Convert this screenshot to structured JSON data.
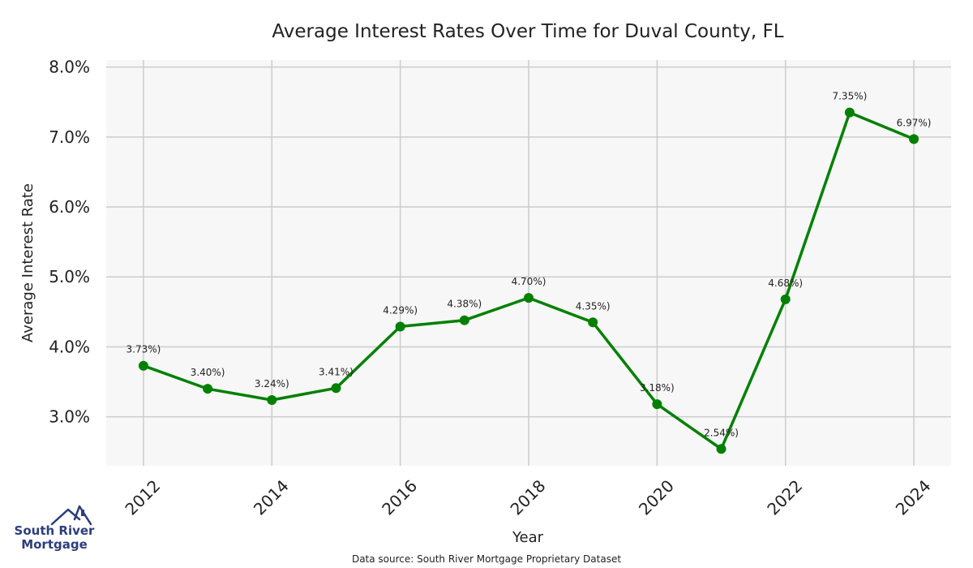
{
  "chart_data": {
    "type": "line",
    "title": "Average Interest Rates Over Time for Duval County, FL",
    "xlabel": "Year",
    "ylabel": "Average Interest Rate",
    "x": [
      2012,
      2013,
      2014,
      2015,
      2016,
      2017,
      2018,
      2019,
      2020,
      2021,
      2022,
      2023,
      2024
    ],
    "values": [
      3.73,
      3.4,
      3.24,
      3.41,
      4.29,
      4.38,
      4.7,
      4.35,
      3.18,
      2.54,
      4.68,
      7.35,
      6.97
    ],
    "data_labels": [
      "3.73%)",
      "3.40%)",
      "3.24%)",
      "3.41%)",
      "4.29%)",
      "4.38%)",
      "4.70%)",
      "4.35%)",
      "3.18%)",
      "2.54%)",
      "4.68%)",
      "7.35%)",
      "6.97%)"
    ],
    "x_ticks": [
      "2012",
      "2014",
      "2016",
      "2018",
      "2020",
      "2022",
      "2024"
    ],
    "y_ticks": [
      "3.0%",
      "4.0%",
      "5.0%",
      "6.0%",
      "7.0%",
      "8.0%"
    ],
    "y_tick_values": [
      3,
      4,
      5,
      6,
      7,
      8
    ],
    "xlim": [
      2011.42,
      2024.58
    ],
    "ylim": [
      2.3,
      8.1
    ],
    "grid": true,
    "line_color": "#008000",
    "background_color": "#f7f7f7",
    "grid_color": "#cccccc"
  },
  "footer": {
    "source": "Data source: South River Mortgage Proprietary Dataset"
  },
  "logo": {
    "line1": "South River",
    "line2": "Mortgage",
    "color": "#2c3e7a"
  }
}
